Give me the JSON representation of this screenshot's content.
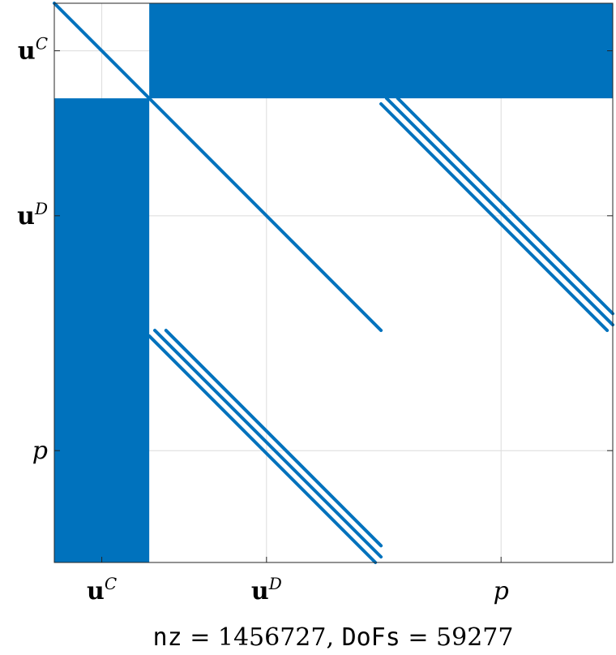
{
  "chart_data": {
    "type": "heatmap",
    "subtype": "sparsity-pattern",
    "xlabel": {
      "nz_name": "nz",
      "eq": " = ",
      "nz_value": "1456727",
      "sep": ", ",
      "dofs_name": "DoFs",
      "dofs_value": "59277"
    },
    "grid": true,
    "color": "#0072BD",
    "ticks": [
      {
        "base": "u",
        "sup": "C",
        "bold": true,
        "at": 0.085
      },
      {
        "base": "u",
        "sup": "D",
        "bold": true,
        "at": 0.38
      },
      {
        "base": "p",
        "sup": "",
        "bold": false,
        "at": 0.8
      }
    ],
    "blocks": [
      {
        "name": "uC",
        "start": 0.0,
        "end": 0.17
      },
      {
        "name": "uD",
        "start": 0.17,
        "end": 0.585
      },
      {
        "name": "p",
        "start": 0.585,
        "end": 1.0
      }
    ],
    "dense_blocks": [
      {
        "rows": [
          "uC"
        ],
        "cols": [
          "uD",
          "p"
        ]
      },
      {
        "rows": [
          "uD",
          "p"
        ],
        "cols": [
          "uC"
        ]
      }
    ],
    "diagonals": [
      {
        "block": "uC-uC",
        "offsets": [
          0
        ]
      },
      {
        "block": "uD-uD",
        "offsets": [
          0
        ]
      },
      {
        "block": "uD-p",
        "offsets": [
          -0.01,
          0.01,
          0.03
        ]
      },
      {
        "block": "p-uD",
        "offsets": [
          -0.01,
          0.01,
          0.03
        ]
      }
    ]
  }
}
